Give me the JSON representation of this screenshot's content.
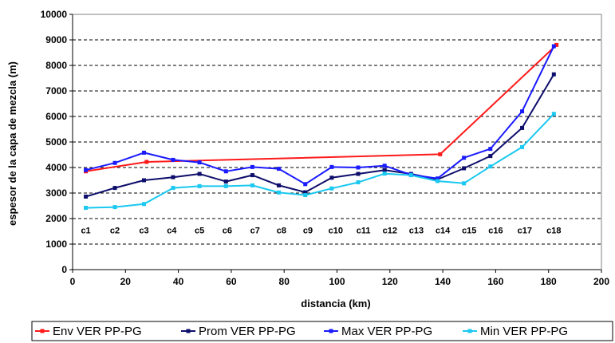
{
  "chart_data": {
    "type": "line",
    "title": "",
    "xlabel": "distancia (km)",
    "ylabel": "espesor de la capa de mezcla (m)",
    "xlim": [
      0,
      200
    ],
    "ylim": [
      0,
      10000
    ],
    "xticks": [
      0,
      20,
      40,
      60,
      80,
      100,
      120,
      140,
      160,
      180,
      200
    ],
    "yticks": [
      0,
      1000,
      2000,
      3000,
      4000,
      5000,
      6000,
      7000,
      8000,
      9000,
      10000
    ],
    "grid": "horizontal dashed",
    "legend_position": "bottom",
    "point_labels": [
      {
        "text": "c1",
        "x": 5
      },
      {
        "text": "c2",
        "x": 16
      },
      {
        "text": "c3",
        "x": 27
      },
      {
        "text": "c4",
        "x": 37.5
      },
      {
        "text": "c5",
        "x": 48
      },
      {
        "text": "c6",
        "x": 58.5
      },
      {
        "text": "c7",
        "x": 69
      },
      {
        "text": "c8",
        "x": 79
      },
      {
        "text": "c9",
        "x": 89
      },
      {
        "text": "c10",
        "x": 99.5
      },
      {
        "text": "c11",
        "x": 110
      },
      {
        "text": "c12",
        "x": 120
      },
      {
        "text": "c13",
        "x": 130
      },
      {
        "text": "c14",
        "x": 140
      },
      {
        "text": "c15",
        "x": 150
      },
      {
        "text": "c16",
        "x": 160
      },
      {
        "text": "c17",
        "x": 171
      },
      {
        "text": "c18",
        "x": 182
      }
    ],
    "point_label_y": 1550,
    "series": [
      {
        "name": "Env VER PP-PG",
        "color": "#ff1a1a",
        "points": [
          [
            5,
            3850
          ],
          [
            28,
            4220
          ],
          [
            139,
            4520
          ],
          [
            183,
            8800
          ]
        ]
      },
      {
        "name": "Prom VER PP-PG",
        "color": "#0d0d6b",
        "points": [
          [
            5,
            2860
          ],
          [
            16,
            3200
          ],
          [
            27,
            3500
          ],
          [
            38,
            3620
          ],
          [
            48,
            3750
          ],
          [
            58,
            3450
          ],
          [
            68,
            3700
          ],
          [
            78,
            3300
          ],
          [
            88,
            3030
          ],
          [
            98,
            3600
          ],
          [
            108,
            3750
          ],
          [
            118,
            3900
          ],
          [
            128,
            3750
          ],
          [
            138,
            3530
          ],
          [
            148,
            3970
          ],
          [
            158,
            4450
          ],
          [
            170,
            5550
          ],
          [
            182,
            7650
          ]
        ]
      },
      {
        "name": "Max VER PP-PG",
        "color": "#1a1aff",
        "points": [
          [
            5,
            3900
          ],
          [
            16,
            4180
          ],
          [
            27,
            4580
          ],
          [
            38,
            4300
          ],
          [
            48,
            4200
          ],
          [
            58,
            3850
          ],
          [
            68,
            4020
          ],
          [
            78,
            3950
          ],
          [
            88,
            3350
          ],
          [
            98,
            4020
          ],
          [
            108,
            4000
          ],
          [
            118,
            4070
          ],
          [
            128,
            3720
          ],
          [
            138,
            3570
          ],
          [
            148,
            4380
          ],
          [
            158,
            4730
          ],
          [
            170,
            6200
          ],
          [
            182,
            8750
          ]
        ]
      },
      {
        "name": "Min VER PP-PG",
        "color": "#1ac8f0",
        "points": [
          [
            5,
            2420
          ],
          [
            16,
            2450
          ],
          [
            27,
            2570
          ],
          [
            38,
            3200
          ],
          [
            48,
            3270
          ],
          [
            58,
            3270
          ],
          [
            68,
            3300
          ],
          [
            78,
            3020
          ],
          [
            88,
            2920
          ],
          [
            98,
            3180
          ],
          [
            108,
            3420
          ],
          [
            118,
            3760
          ],
          [
            128,
            3700
          ],
          [
            138,
            3470
          ],
          [
            148,
            3380
          ],
          [
            158,
            4040
          ],
          [
            170,
            4800
          ],
          [
            182,
            6100
          ]
        ]
      }
    ]
  }
}
